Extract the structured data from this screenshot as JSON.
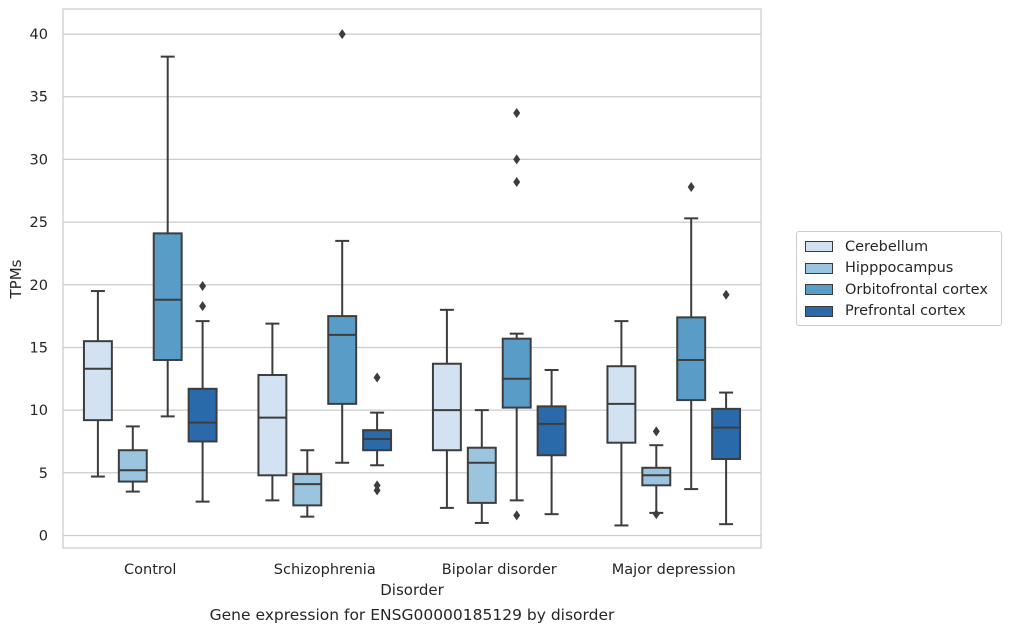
{
  "caption": "Gene expression for ENSG00000185129 by disorder",
  "chart_data": {
    "type": "boxplot",
    "xlabel": "Disorder",
    "ylabel": "TPMs",
    "ylim": [
      -1,
      42
    ],
    "yticks": [
      0,
      5,
      10,
      15,
      20,
      25,
      30,
      35,
      40
    ],
    "grid": true,
    "legend_position": "right",
    "categories": [
      "Control",
      "Schizophrenia",
      "Bipolar disorder",
      "Major depression"
    ],
    "series": [
      {
        "name": "Cerebellum",
        "color": "#d2e2f2",
        "boxes": [
          {
            "whislo": 4.7,
            "q1": 9.2,
            "med": 13.3,
            "q3": 15.5,
            "whishi": 19.5,
            "fliers": []
          },
          {
            "whislo": 2.8,
            "q1": 4.8,
            "med": 9.4,
            "q3": 12.8,
            "whishi": 16.9,
            "fliers": []
          },
          {
            "whislo": 2.2,
            "q1": 6.8,
            "med": 10.0,
            "q3": 13.7,
            "whishi": 18.0,
            "fliers": []
          },
          {
            "whislo": 0.8,
            "q1": 7.4,
            "med": 10.5,
            "q3": 13.5,
            "whishi": 17.1,
            "fliers": []
          }
        ]
      },
      {
        "name": "Hipppocampus",
        "color": "#9bc4de",
        "boxes": [
          {
            "whislo": 3.5,
            "q1": 4.3,
            "med": 5.2,
            "q3": 6.8,
            "whishi": 8.7,
            "fliers": []
          },
          {
            "whislo": 1.5,
            "q1": 2.4,
            "med": 4.1,
            "q3": 4.9,
            "whishi": 6.8,
            "fliers": []
          },
          {
            "whislo": 1.0,
            "q1": 2.6,
            "med": 5.8,
            "q3": 7.0,
            "whishi": 10.0,
            "fliers": []
          },
          {
            "whislo": 1.8,
            "q1": 4.0,
            "med": 4.8,
            "q3": 5.4,
            "whishi": 7.2,
            "fliers": [
              8.3,
              1.7
            ]
          }
        ]
      },
      {
        "name": "Orbitofrontal cortex",
        "color": "#5a9cc8",
        "boxes": [
          {
            "whislo": 9.5,
            "q1": 14.0,
            "med": 18.8,
            "q3": 24.1,
            "whishi": 38.2,
            "fliers": []
          },
          {
            "whislo": 5.8,
            "q1": 10.5,
            "med": 16.0,
            "q3": 17.5,
            "whishi": 23.5,
            "fliers": [
              40.0
            ]
          },
          {
            "whislo": 2.8,
            "q1": 10.2,
            "med": 12.5,
            "q3": 15.7,
            "whishi": 16.1,
            "fliers": [
              33.7,
              30.0,
              28.2,
              1.6
            ]
          },
          {
            "whislo": 3.7,
            "q1": 10.8,
            "med": 14.0,
            "q3": 17.4,
            "whishi": 25.3,
            "fliers": [
              27.8
            ]
          }
        ]
      },
      {
        "name": "Prefrontal cortex",
        "color": "#2a6aab",
        "boxes": [
          {
            "whislo": 2.7,
            "q1": 7.5,
            "med": 9.0,
            "q3": 11.7,
            "whishi": 17.1,
            "fliers": [
              19.9,
              18.3
            ]
          },
          {
            "whislo": 5.6,
            "q1": 6.8,
            "med": 7.7,
            "q3": 8.4,
            "whishi": 9.8,
            "fliers": [
              12.6,
              4.0,
              3.6
            ]
          },
          {
            "whislo": 1.7,
            "q1": 6.4,
            "med": 8.9,
            "q3": 10.3,
            "whishi": 13.2,
            "fliers": []
          },
          {
            "whislo": 0.9,
            "q1": 6.1,
            "med": 8.6,
            "q3": 10.1,
            "whishi": 11.4,
            "fliers": [
              19.2
            ]
          }
        ]
      }
    ]
  }
}
